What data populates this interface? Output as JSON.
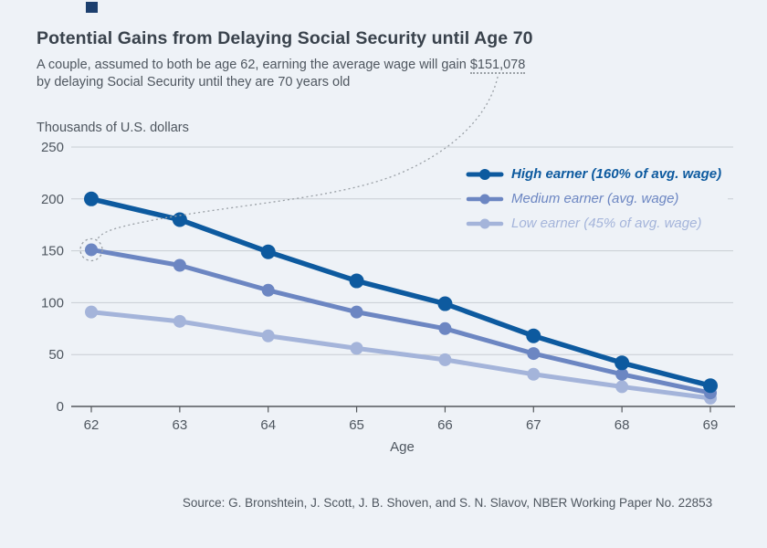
{
  "page": {
    "background_color": "#eef2f7",
    "brand_square_color": "#1c3f6e"
  },
  "header": {
    "title": "Potential Gains from Delaying Social Security until Age 70",
    "subtitle_prefix": "A couple, assumed to both be age 62, earning the average wage will gain ",
    "subtitle_highlight": "$151,078",
    "subtitle_line2": "by delaying Social Security until they are 70 years old"
  },
  "chart_data": {
    "type": "line",
    "title": "Potential Gains from Delaying Social Security until Age 70",
    "unit_label": "Thousands of U.S. dollars",
    "xlabel": "Age",
    "x": [
      62,
      63,
      64,
      65,
      66,
      67,
      68,
      69
    ],
    "yticks": [
      0,
      50,
      100,
      150,
      200,
      250
    ],
    "ylim": [
      0,
      250
    ],
    "grid": true,
    "legend_position": "inside-top-right",
    "series": [
      {
        "name": "High earner (160% of avg. wage)",
        "color": "#0d5a9f",
        "weight": "bold",
        "values": [
          200,
          180,
          149,
          121,
          99,
          68,
          42,
          20
        ]
      },
      {
        "name": "Medium earner (avg. wage)",
        "color": "#6c86c2",
        "weight": "regular",
        "values": [
          151,
          136,
          112,
          91,
          75,
          51,
          31,
          13
        ]
      },
      {
        "name": "Low earner (45% of avg. wage)",
        "color": "#a4b4da",
        "weight": "regular",
        "values": [
          91,
          82,
          68,
          56,
          45,
          31,
          19,
          8
        ]
      }
    ],
    "annotation": {
      "text": "$151,078",
      "series": "Medium earner (avg. wage)",
      "x": 62,
      "value": 151,
      "style": "dotted circle around data point linked by dotted leader curve to subtitle figure"
    }
  },
  "footer": {
    "source": "Source: G. Bronshtein, J. Scott, J. B. Shoven, and S. N. Slavov, NBER Working Paper No. 22853"
  },
  "colors": {
    "gridline": "#c8cdd3",
    "axis": "#54585d",
    "tick_label": "#4e565f",
    "annotation": "#9aa0a6"
  }
}
